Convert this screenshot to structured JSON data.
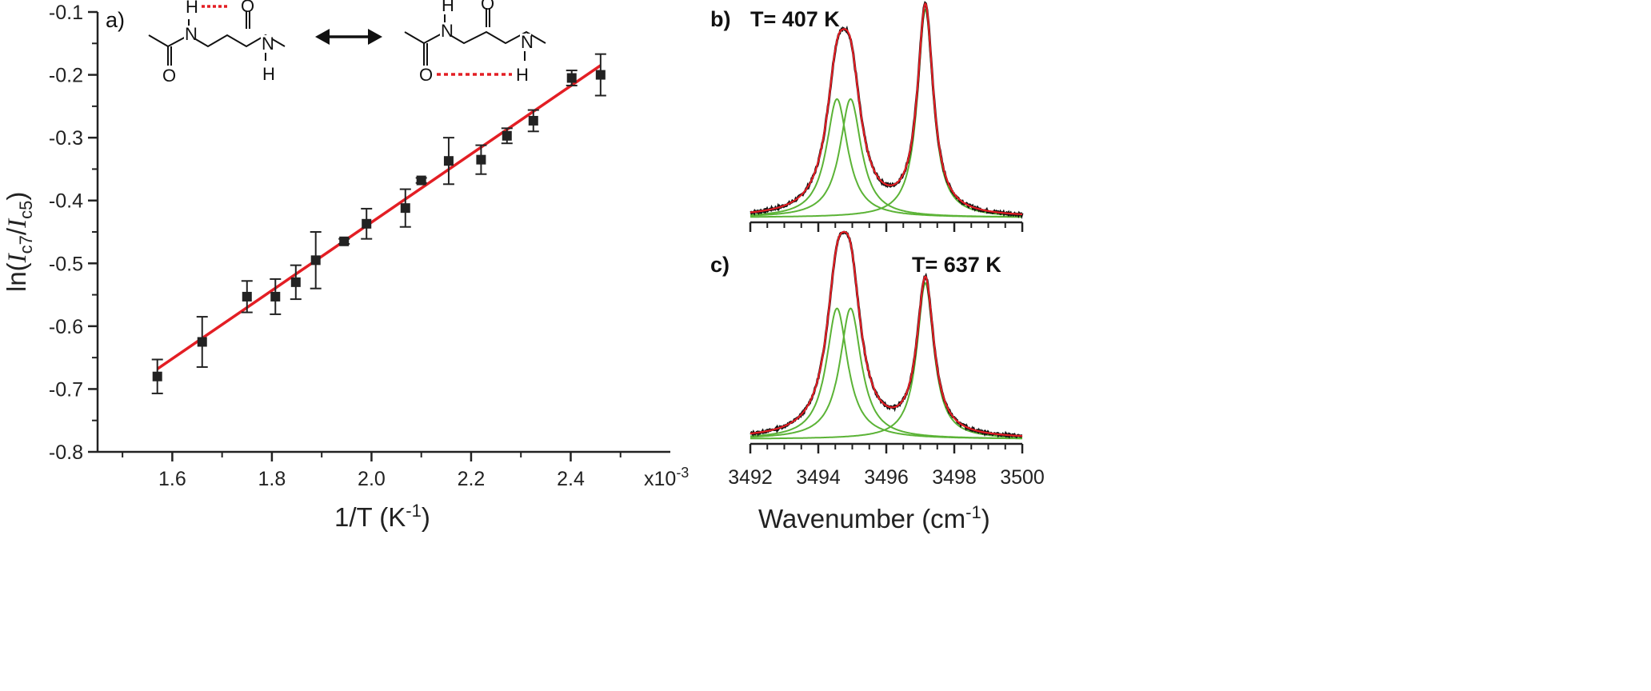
{
  "chart_data": [
    {
      "panel": "a)",
      "type": "scatter",
      "ylabel_parts": [
        "ln(",
        "I",
        "c7",
        "/",
        "I",
        "c5",
        ")"
      ],
      "xlabel_parts": [
        "1/T (K",
        "-1",
        ")"
      ],
      "x_multiplier": [
        "x10",
        "-3"
      ],
      "xlim": [
        1.45,
        2.6
      ],
      "ylim": [
        -0.8,
        -0.1
      ],
      "xticks": [
        1.6,
        1.8,
        2.0,
        2.2,
        2.4
      ],
      "xtick_labels": [
        "1.6",
        "1.8",
        "2.0",
        "2.2",
        "2.4"
      ],
      "yticks": [
        -0.1,
        -0.2,
        -0.3,
        -0.4,
        -0.5,
        -0.6,
        -0.7,
        -0.8
      ],
      "ytick_labels": [
        "-0.1",
        "-0.2",
        "-0.3",
        "-0.4",
        "-0.5",
        "-0.6",
        "-0.7",
        "-0.8"
      ],
      "points": [
        {
          "x": 1.57,
          "y": -0.68,
          "err": 0.027
        },
        {
          "x": 1.66,
          "y": -0.625,
          "err": 0.04
        },
        {
          "x": 1.75,
          "y": -0.553,
          "err": 0.025
        },
        {
          "x": 1.807,
          "y": -0.553,
          "err": 0.028
        },
        {
          "x": 1.848,
          "y": -0.53,
          "err": 0.027
        },
        {
          "x": 1.888,
          "y": -0.495,
          "err": 0.045
        },
        {
          "x": 1.945,
          "y": -0.465,
          "err": 0.004
        },
        {
          "x": 1.99,
          "y": -0.437,
          "err": 0.024
        },
        {
          "x": 2.068,
          "y": -0.412,
          "err": 0.03
        },
        {
          "x": 2.1,
          "y": -0.368,
          "err": 0.004
        },
        {
          "x": 2.155,
          "y": -0.337,
          "err": 0.037
        },
        {
          "x": 2.22,
          "y": -0.335,
          "err": 0.023
        },
        {
          "x": 2.272,
          "y": -0.297,
          "err": 0.012
        },
        {
          "x": 2.325,
          "y": -0.273,
          "err": 0.017
        },
        {
          "x": 2.402,
          "y": -0.205,
          "err": 0.012
        },
        {
          "x": 2.46,
          "y": -0.2,
          "err": 0.033
        }
      ],
      "fit_line": {
        "x": [
          1.57,
          2.46
        ],
        "y": [
          -0.668,
          -0.185
        ]
      },
      "colors": {
        "points": "#222222",
        "fit": "#e31e24"
      }
    },
    {
      "panel": "b)",
      "type": "line",
      "title": "T= 407 K",
      "xlim": [
        3492,
        3500
      ],
      "peaks": [
        {
          "center": 3494.55,
          "width": 0.38,
          "height": 0.57
        },
        {
          "center": 3494.95,
          "width": 0.38,
          "height": 0.57
        },
        {
          "center": 3497.15,
          "width": 0.28,
          "height": 1.0
        }
      ],
      "colors": {
        "data": "#111111",
        "fit": "#e31e24",
        "components": "#5bb336"
      }
    },
    {
      "panel": "c)",
      "type": "line",
      "title": "T= 637 K",
      "xlim": [
        3492,
        3500
      ],
      "xlabel_parts": [
        "Wavenumber (cm",
        "-1",
        ")"
      ],
      "xticks": [
        3492,
        3494,
        3496,
        3498,
        3500
      ],
      "xtick_labels": [
        "3492",
        "3494",
        "3496",
        "3498",
        "3500"
      ],
      "peaks": [
        {
          "center": 3494.55,
          "width": 0.38,
          "height": 0.72
        },
        {
          "center": 3494.95,
          "width": 0.38,
          "height": 0.72
        },
        {
          "center": 3497.15,
          "width": 0.3,
          "height": 0.86
        }
      ],
      "colors": {
        "data": "#111111",
        "fit": "#e31e24",
        "components": "#5bb336"
      }
    }
  ],
  "inset": {
    "atoms": {
      "H": "H",
      "N": "N",
      "O": "O"
    },
    "colors": {
      "hbond": "#e31e24",
      "bond": "#111111"
    }
  }
}
